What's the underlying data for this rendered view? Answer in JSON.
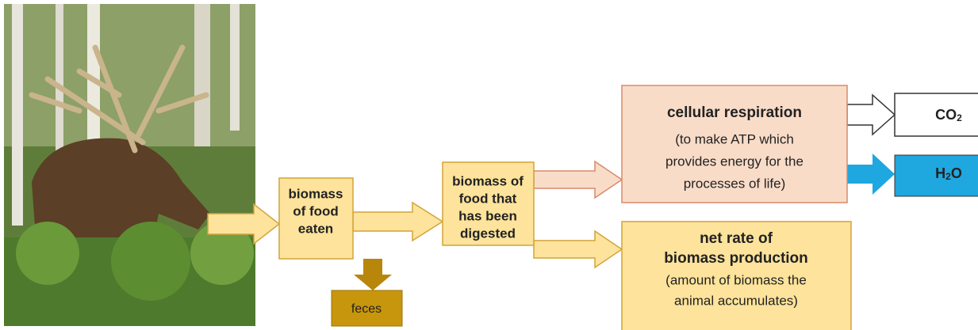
{
  "food_eaten": {
    "lines": [
      "biomass",
      "of food",
      "eaten"
    ]
  },
  "feces": "feces",
  "digested": {
    "lines": [
      "biomass of",
      "food that",
      "has been",
      "digested"
    ]
  },
  "respiration": {
    "title": "cellular respiration",
    "lines": [
      "(to make ATP which",
      "provides energy for the",
      "processes of life)"
    ]
  },
  "net_production": {
    "title_lines": [
      "net rate of",
      "biomass production"
    ],
    "lines": [
      "(amount of biomass the",
      "animal accumulates)"
    ]
  },
  "co2": {
    "main": "CO",
    "sub": "2"
  },
  "h2o": {
    "parts": [
      "H",
      "2",
      "O"
    ]
  }
}
